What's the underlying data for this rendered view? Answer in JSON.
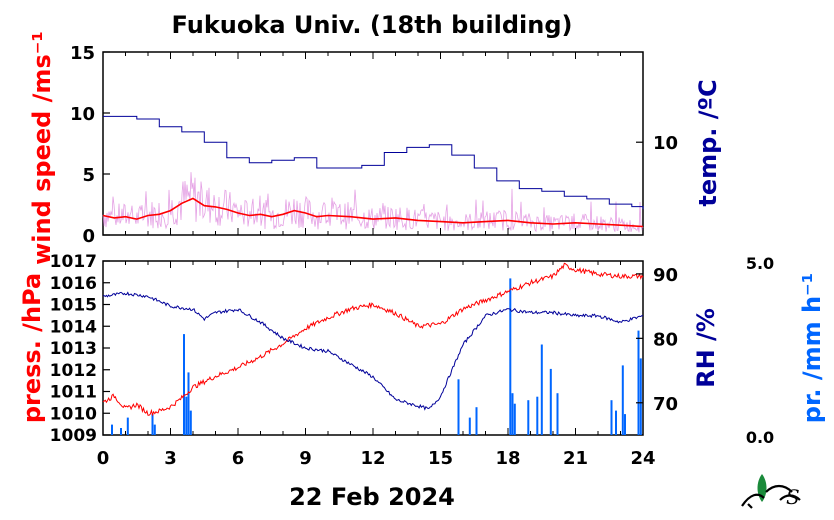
{
  "title": "Fukuoka Univ. (18th building)",
  "date_label": "22 Feb 2024",
  "colors": {
    "wind": "#ff0000",
    "wind_raw": "#dd88dd",
    "temp": "#000099",
    "press": "#ff0000",
    "rh": "#000099",
    "precip": "#0066ff"
  },
  "chart_data": [
    {
      "type": "line",
      "panel": "top",
      "x_range": [
        0,
        24
      ],
      "x_ticks": [
        "0",
        "3",
        "6",
        "9",
        "12",
        "15",
        "18",
        "21",
        "24"
      ],
      "left_axis": {
        "label": "wind speed /ms⁻¹",
        "range": [
          0,
          15
        ],
        "ticks": [
          "0",
          "5",
          "10",
          "15"
        ]
      },
      "right_axis": {
        "label": "temp. /ºC",
        "ticks": [
          "10"
        ]
      },
      "series": [
        {
          "name": "wind speed",
          "axis": "left",
          "x": [
            0,
            0.5,
            1,
            1.5,
            2,
            2.5,
            3,
            3.5,
            4,
            4.5,
            5,
            5.5,
            6,
            6.5,
            7,
            7.5,
            8,
            8.5,
            9,
            9.5,
            10,
            11,
            12,
            13,
            14,
            15,
            16,
            17,
            18,
            19,
            20,
            21,
            22,
            23,
            24
          ],
          "y": [
            1.6,
            1.4,
            1.5,
            1.3,
            1.6,
            1.7,
            2.0,
            2.6,
            3.0,
            2.4,
            2.3,
            2.1,
            1.8,
            1.6,
            1.7,
            1.5,
            1.7,
            2.0,
            1.8,
            1.5,
            1.6,
            1.5,
            1.3,
            1.4,
            1.2,
            1.1,
            1.0,
            1.1,
            1.2,
            1.0,
            0.9,
            1.0,
            0.9,
            0.8,
            0.7
          ]
        },
        {
          "name": "temperature",
          "axis": "right",
          "x": [
            0,
            0.7,
            1.5,
            2.5,
            3.5,
            4.5,
            5.5,
            6.5,
            7.5,
            8.5,
            9.5,
            10.5,
            11.5,
            12.5,
            13.5,
            14.5,
            15.5,
            16.5,
            17.5,
            18.5,
            19.5,
            20.5,
            21.5,
            22.5,
            23.5,
            24
          ],
          "y": [
            11.0,
            11.0,
            10.9,
            10.6,
            10.4,
            10.0,
            9.4,
            9.2,
            9.3,
            9.4,
            9.0,
            9.0,
            9.1,
            9.6,
            9.8,
            9.9,
            9.5,
            9.0,
            8.5,
            8.2,
            8.1,
            7.9,
            7.8,
            7.6,
            7.5,
            7.4
          ]
        }
      ]
    },
    {
      "type": "line",
      "panel": "bottom",
      "x_range": [
        0,
        24
      ],
      "x_ticks": [
        "0",
        "3",
        "6",
        "9",
        "12",
        "15",
        "18",
        "21",
        "24"
      ],
      "left_axis": {
        "label": "press. /hPa",
        "range": [
          1009,
          1017
        ],
        "ticks": [
          "1009",
          "1010",
          "1011",
          "1012",
          "1013",
          "1014",
          "1015",
          "1016",
          "1017"
        ]
      },
      "right_axis": {
        "label": "RH /%",
        "range": [
          65,
          92
        ],
        "ticks": [
          "70",
          "80",
          "90"
        ]
      },
      "far_right_axis": {
        "label": "pr. /mm h⁻¹",
        "range": [
          0.0,
          5.0
        ],
        "ticks": [
          "0.0",
          "5.0"
        ]
      },
      "series": [
        {
          "name": "pressure",
          "axis": "left",
          "x": [
            0,
            0.5,
            1,
            1.5,
            2,
            2.5,
            3,
            3.5,
            4,
            5,
            6,
            7,
            8,
            9,
            10,
            11,
            12,
            13,
            14,
            15,
            16,
            17,
            18,
            19,
            20,
            20.5,
            21,
            22,
            23,
            24
          ],
          "y": [
            1010.5,
            1010.8,
            1010.2,
            1010.4,
            1010.0,
            1010.1,
            1010.3,
            1010.7,
            1011.2,
            1011.7,
            1012.1,
            1012.6,
            1013.2,
            1013.9,
            1014.4,
            1014.8,
            1015.0,
            1014.6,
            1014.0,
            1014.1,
            1014.8,
            1015.2,
            1015.6,
            1016.0,
            1016.3,
            1016.8,
            1016.6,
            1016.4,
            1016.3,
            1016.3
          ]
        },
        {
          "name": "relative humidity",
          "axis": "right",
          "x": [
            0,
            1,
            2,
            3,
            4,
            4.5,
            5,
            6,
            7,
            8,
            9,
            10,
            11,
            12,
            13,
            14,
            14.5,
            15,
            16,
            17,
            18,
            19,
            20,
            21,
            22,
            23,
            24
          ],
          "y": [
            86.5,
            87.0,
            86.5,
            85.0,
            84.5,
            83.0,
            84.0,
            84.5,
            82.5,
            80.0,
            78.5,
            78.0,
            76.0,
            74.0,
            70.5,
            69.5,
            69.0,
            71.0,
            79.0,
            83.5,
            84.5,
            84.0,
            84.0,
            83.5,
            83.5,
            82.5,
            83.5
          ]
        },
        {
          "name": "precipitation",
          "axis": "far_right",
          "x": [
            0.4,
            0.8,
            1.1,
            2.2,
            2.3,
            3.6,
            3.7,
            3.8,
            3.9,
            15.8,
            16.3,
            16.6,
            18.1,
            18.2,
            18.3,
            18.9,
            19.3,
            19.5,
            19.9,
            20.2,
            22.6,
            22.8,
            23.1,
            23.2,
            23.8,
            23.9
          ],
          "y": [
            0.3,
            0.2,
            0.5,
            0.6,
            0.3,
            2.9,
            1.1,
            1.8,
            0.7,
            1.6,
            0.5,
            0.8,
            4.5,
            1.2,
            0.9,
            1.0,
            1.1,
            2.6,
            1.9,
            1.2,
            1.0,
            0.7,
            2.0,
            0.6,
            3.0,
            2.2
          ]
        }
      ]
    }
  ]
}
